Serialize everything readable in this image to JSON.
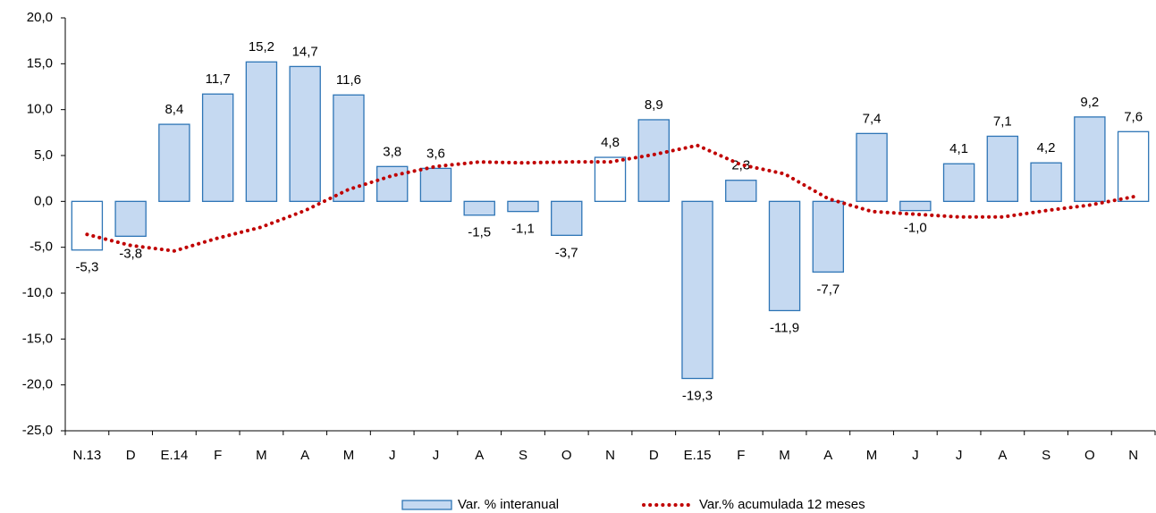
{
  "chart_data": {
    "type": "bar",
    "categories": [
      "N.13",
      "D",
      "E.14",
      "F",
      "M",
      "A",
      "M",
      "J",
      "J",
      "A",
      "S",
      "O",
      "N",
      "D",
      "E.15",
      "F",
      "M",
      "A",
      "M",
      "J",
      "J",
      "A",
      "S",
      "O",
      "N"
    ],
    "series": [
      {
        "name": "Var. % interanual",
        "type": "bar",
        "color": "#c5d9f1",
        "stroke": "#2e75b6",
        "bar_colors": [
          "#ffffff",
          "#c5d9f1",
          "#c5d9f1",
          "#c5d9f1",
          "#c5d9f1",
          "#c5d9f1",
          "#c5d9f1",
          "#c5d9f1",
          "#c5d9f1",
          "#c5d9f1",
          "#c5d9f1",
          "#c5d9f1",
          "#ffffff",
          "#c5d9f1",
          "#c5d9f1",
          "#c5d9f1",
          "#c5d9f1",
          "#c5d9f1",
          "#c5d9f1",
          "#c5d9f1",
          "#c5d9f1",
          "#c5d9f1",
          "#c5d9f1",
          "#c5d9f1",
          "#ffffff"
        ],
        "values": [
          -5.3,
          -3.8,
          8.4,
          11.7,
          15.2,
          14.7,
          11.6,
          3.8,
          3.6,
          -1.5,
          -1.1,
          -3.7,
          4.8,
          8.9,
          -19.3,
          2.3,
          -11.9,
          -7.7,
          7.4,
          -1.0,
          4.1,
          7.1,
          4.2,
          9.2,
          7.6
        ],
        "value_labels": [
          "-5,3",
          "-3,8",
          "8,4",
          "11,7",
          "15,2",
          "14,7",
          "11,6",
          "3,8",
          "3,6",
          "-1,5",
          "-1,1",
          "-3,7",
          "4,8",
          "8,9",
          "-19,3",
          "2,3",
          "-11,9",
          "-7,7",
          "7,4",
          "-1,0",
          "4,1",
          "7,1",
          "4,2",
          "9,2",
          "7,6"
        ]
      },
      {
        "name": "Var.% acumulada 12 meses",
        "type": "line",
        "color": "#c00000",
        "line_style": "dotted",
        "values": [
          -3.6,
          -4.8,
          -5.4,
          -4.0,
          -2.8,
          -1.0,
          1.3,
          2.8,
          3.8,
          4.3,
          4.2,
          4.3,
          4.3,
          5.1,
          6.1,
          4.0,
          3.0,
          0.3,
          -1.1,
          -1.4,
          -1.7,
          -1.7,
          -1.0,
          -0.4,
          0.5
        ]
      }
    ],
    "ylim": [
      -25,
      20
    ],
    "yticks": [
      {
        "value": -25,
        "label": "-25,0"
      },
      {
        "value": -20,
        "label": "-20,0"
      },
      {
        "value": -15,
        "label": "-15,0"
      },
      {
        "value": -10,
        "label": "-10,0"
      },
      {
        "value": -5,
        "label": "-5,0"
      },
      {
        "value": 0,
        "label": "0,0"
      },
      {
        "value": 5,
        "label": "5,0"
      },
      {
        "value": 10,
        "label": "10,0"
      },
      {
        "value": 15,
        "label": "15,0"
      },
      {
        "value": 20,
        "label": "20,0"
      }
    ],
    "legend": "bottom"
  }
}
